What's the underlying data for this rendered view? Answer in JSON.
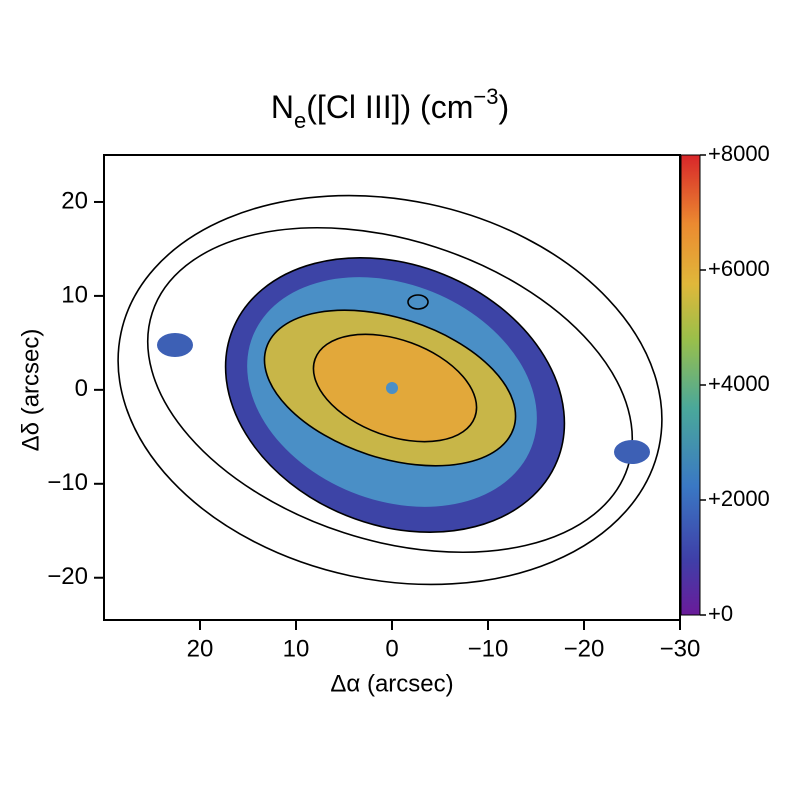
{
  "chart_data": {
    "type": "image",
    "title_parts": [
      "N",
      "e",
      "([Cl III]) (cm",
      "−3",
      ")"
    ],
    "x_label": "Δα (arcsec)",
    "y_label": "Δδ (arcsec)",
    "xlim": [
      30,
      -30
    ],
    "xticks": [
      20,
      10,
      0,
      {
        "value": -10,
        "label": "−10"
      },
      {
        "value": -20,
        "label": "−20"
      },
      {
        "value": -30,
        "label": "−30"
      }
    ],
    "ylim": [
      -24.5,
      25
    ],
    "yticks": [
      20,
      10,
      0,
      {
        "value": -10,
        "label": "−10"
      },
      {
        "value": -20,
        "label": "−20"
      }
    ],
    "colorbar_lim": [
      0,
      8000
    ],
    "colorbar_ticks": [
      {
        "value": 0,
        "label": "+0"
      },
      {
        "value": 2000,
        "label": "+2000"
      },
      {
        "value": 4000,
        "label": "+4000"
      },
      {
        "value": 6000,
        "label": "+6000"
      },
      {
        "value": 8000,
        "label": "+8000"
      }
    ]
  }
}
